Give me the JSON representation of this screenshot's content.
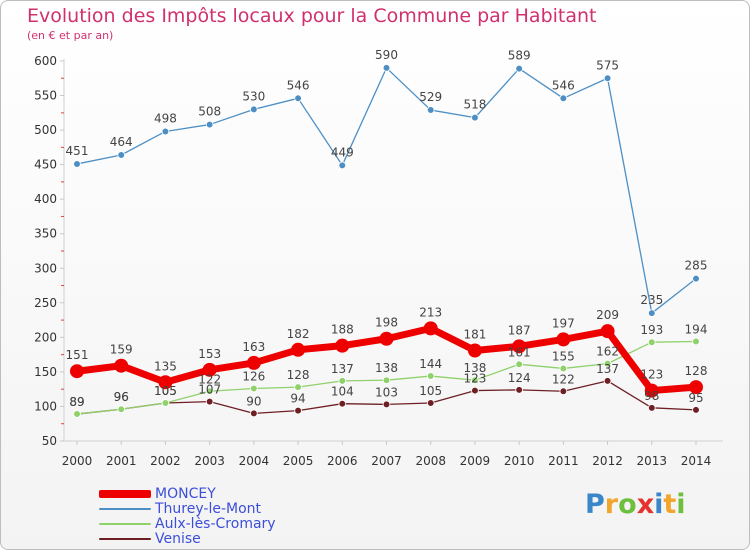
{
  "header": {
    "title": "Evolution des Impôts locaux pour la Commune par Habitant",
    "subtitle": "(en € et par an)"
  },
  "chart_data": {
    "type": "line",
    "title": "Evolution des Impôts locaux pour la Commune par Habitant",
    "subtitle": "(en € et par an)",
    "x": [
      2000,
      2001,
      2002,
      2003,
      2004,
      2005,
      2006,
      2007,
      2008,
      2009,
      2010,
      2011,
      2012,
      2013,
      2014
    ],
    "ylim": [
      50,
      600
    ],
    "yticks": [
      50,
      100,
      150,
      200,
      250,
      300,
      350,
      400,
      450,
      500,
      550,
      600
    ],
    "grid": false,
    "legend_position": "bottom-left",
    "series": [
      {
        "name": "MONCEY",
        "color": "#ee0000",
        "emphasis": true,
        "values": [
          151,
          159,
          135,
          153,
          163,
          182,
          188,
          198,
          213,
          181,
          187,
          197,
          209,
          123,
          128
        ]
      },
      {
        "name": "Thurey-le-Mont",
        "color": "#4d8fc4",
        "values": [
          451,
          464,
          498,
          508,
          530,
          546,
          449,
          590,
          529,
          518,
          589,
          546,
          575,
          235,
          285
        ]
      },
      {
        "name": "Aulx-lès-Cromary",
        "color": "#8fd16a",
        "values": [
          89,
          96,
          105,
          122,
          126,
          128,
          137,
          138,
          144,
          138,
          161,
          155,
          162,
          193,
          194
        ]
      },
      {
        "name": "Venise",
        "color": "#6d1f24",
        "values": [
          89,
          96,
          105,
          107,
          90,
          94,
          104,
          103,
          105,
          123,
          124,
          122,
          137,
          98,
          95
        ]
      }
    ]
  },
  "legend": {
    "items": [
      {
        "label": "MONCEY",
        "color": "#ee0000"
      },
      {
        "label": "Thurey-le-Mont",
        "color": "#4d8fc4"
      },
      {
        "label": "Aulx-lès-Cromary",
        "color": "#8fd16a"
      },
      {
        "label": "Venise",
        "color": "#6d1f24"
      }
    ]
  },
  "logo": {
    "text": "Proxiti",
    "letter_colors": [
      "#3a86c8",
      "#f2a52b",
      "#6fbf3f",
      "#e5322d",
      "#3a86c8",
      "#f2a52b",
      "#6fbf3f"
    ]
  }
}
